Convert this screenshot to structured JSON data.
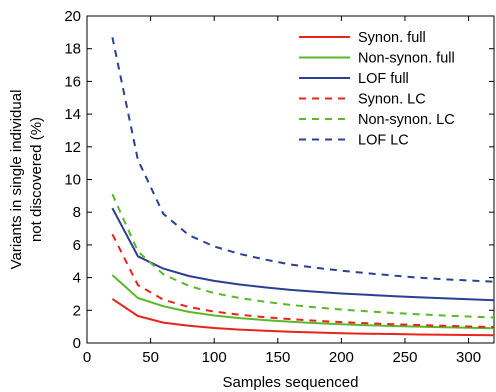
{
  "chart_data": {
    "type": "line",
    "title": "",
    "xlabel": "Samples sequenced",
    "ylabel_lines": [
      "Variants in single individual",
      "not discovered (%)"
    ],
    "xlim": [
      0,
      320
    ],
    "ylim": [
      0,
      20
    ],
    "xticks": [
      0,
      50,
      100,
      150,
      200,
      250,
      300
    ],
    "yticks": [
      0,
      2,
      4,
      6,
      8,
      10,
      12,
      14,
      16,
      18,
      20
    ],
    "legend_position": "top-right",
    "grid": false,
    "series": [
      {
        "name": "Synon. full",
        "color": "#e8241c",
        "dash": "solid",
        "points": [
          [
            20,
            2.7
          ],
          [
            40,
            1.65
          ],
          [
            60,
            1.25
          ],
          [
            80,
            1.05
          ],
          [
            100,
            0.92
          ],
          [
            120,
            0.82
          ],
          [
            140,
            0.75
          ],
          [
            160,
            0.69
          ],
          [
            180,
            0.64
          ],
          [
            200,
            0.6
          ],
          [
            220,
            0.57
          ],
          [
            240,
            0.55
          ],
          [
            260,
            0.52
          ],
          [
            280,
            0.5
          ],
          [
            300,
            0.49
          ],
          [
            320,
            0.47
          ]
        ]
      },
      {
        "name": "Non-synon. full",
        "color": "#5bb829",
        "dash": "solid",
        "points": [
          [
            20,
            4.15
          ],
          [
            40,
            2.75
          ],
          [
            60,
            2.25
          ],
          [
            80,
            1.9
          ],
          [
            100,
            1.68
          ],
          [
            120,
            1.52
          ],
          [
            140,
            1.4
          ],
          [
            160,
            1.3
          ],
          [
            180,
            1.22
          ],
          [
            200,
            1.15
          ],
          [
            220,
            1.09
          ],
          [
            240,
            1.04
          ],
          [
            260,
            1.0
          ],
          [
            280,
            0.96
          ],
          [
            300,
            0.93
          ],
          [
            320,
            0.9
          ]
        ]
      },
      {
        "name": "LOF full",
        "color": "#2b3f94",
        "dash": "solid",
        "points": [
          [
            20,
            8.25
          ],
          [
            40,
            5.3
          ],
          [
            60,
            4.55
          ],
          [
            80,
            4.1
          ],
          [
            100,
            3.8
          ],
          [
            120,
            3.58
          ],
          [
            140,
            3.4
          ],
          [
            160,
            3.25
          ],
          [
            180,
            3.13
          ],
          [
            200,
            3.03
          ],
          [
            220,
            2.95
          ],
          [
            240,
            2.87
          ],
          [
            260,
            2.8
          ],
          [
            280,
            2.74
          ],
          [
            300,
            2.68
          ],
          [
            320,
            2.62
          ]
        ]
      },
      {
        "name": "Synon. LC",
        "color": "#e8241c",
        "dash": "dashed",
        "points": [
          [
            20,
            6.65
          ],
          [
            40,
            3.55
          ],
          [
            60,
            2.65
          ],
          [
            80,
            2.2
          ],
          [
            100,
            1.92
          ],
          [
            120,
            1.73
          ],
          [
            140,
            1.58
          ],
          [
            160,
            1.46
          ],
          [
            180,
            1.36
          ],
          [
            200,
            1.28
          ],
          [
            220,
            1.21
          ],
          [
            240,
            1.15
          ],
          [
            260,
            1.1
          ],
          [
            280,
            1.05
          ],
          [
            300,
            1.01
          ],
          [
            320,
            0.98
          ]
        ]
      },
      {
        "name": "Non-synon. LC",
        "color": "#5bb829",
        "dash": "dashed",
        "points": [
          [
            20,
            9.1
          ],
          [
            40,
            5.6
          ],
          [
            60,
            4.2
          ],
          [
            80,
            3.5
          ],
          [
            100,
            3.05
          ],
          [
            120,
            2.75
          ],
          [
            140,
            2.52
          ],
          [
            160,
            2.33
          ],
          [
            180,
            2.18
          ],
          [
            200,
            2.05
          ],
          [
            220,
            1.94
          ],
          [
            240,
            1.84
          ],
          [
            260,
            1.76
          ],
          [
            280,
            1.68
          ],
          [
            300,
            1.62
          ],
          [
            320,
            1.56
          ]
        ]
      },
      {
        "name": "LOF LC",
        "color": "#2b3f94",
        "dash": "dashed",
        "points": [
          [
            20,
            18.7
          ],
          [
            40,
            11.2
          ],
          [
            60,
            7.9
          ],
          [
            80,
            6.6
          ],
          [
            100,
            5.9
          ],
          [
            120,
            5.45
          ],
          [
            140,
            5.1
          ],
          [
            160,
            4.8
          ],
          [
            180,
            4.6
          ],
          [
            200,
            4.42
          ],
          [
            220,
            4.27
          ],
          [
            240,
            4.13
          ],
          [
            260,
            4.0
          ],
          [
            280,
            3.9
          ],
          [
            300,
            3.82
          ],
          [
            320,
            3.75
          ]
        ]
      }
    ]
  }
}
